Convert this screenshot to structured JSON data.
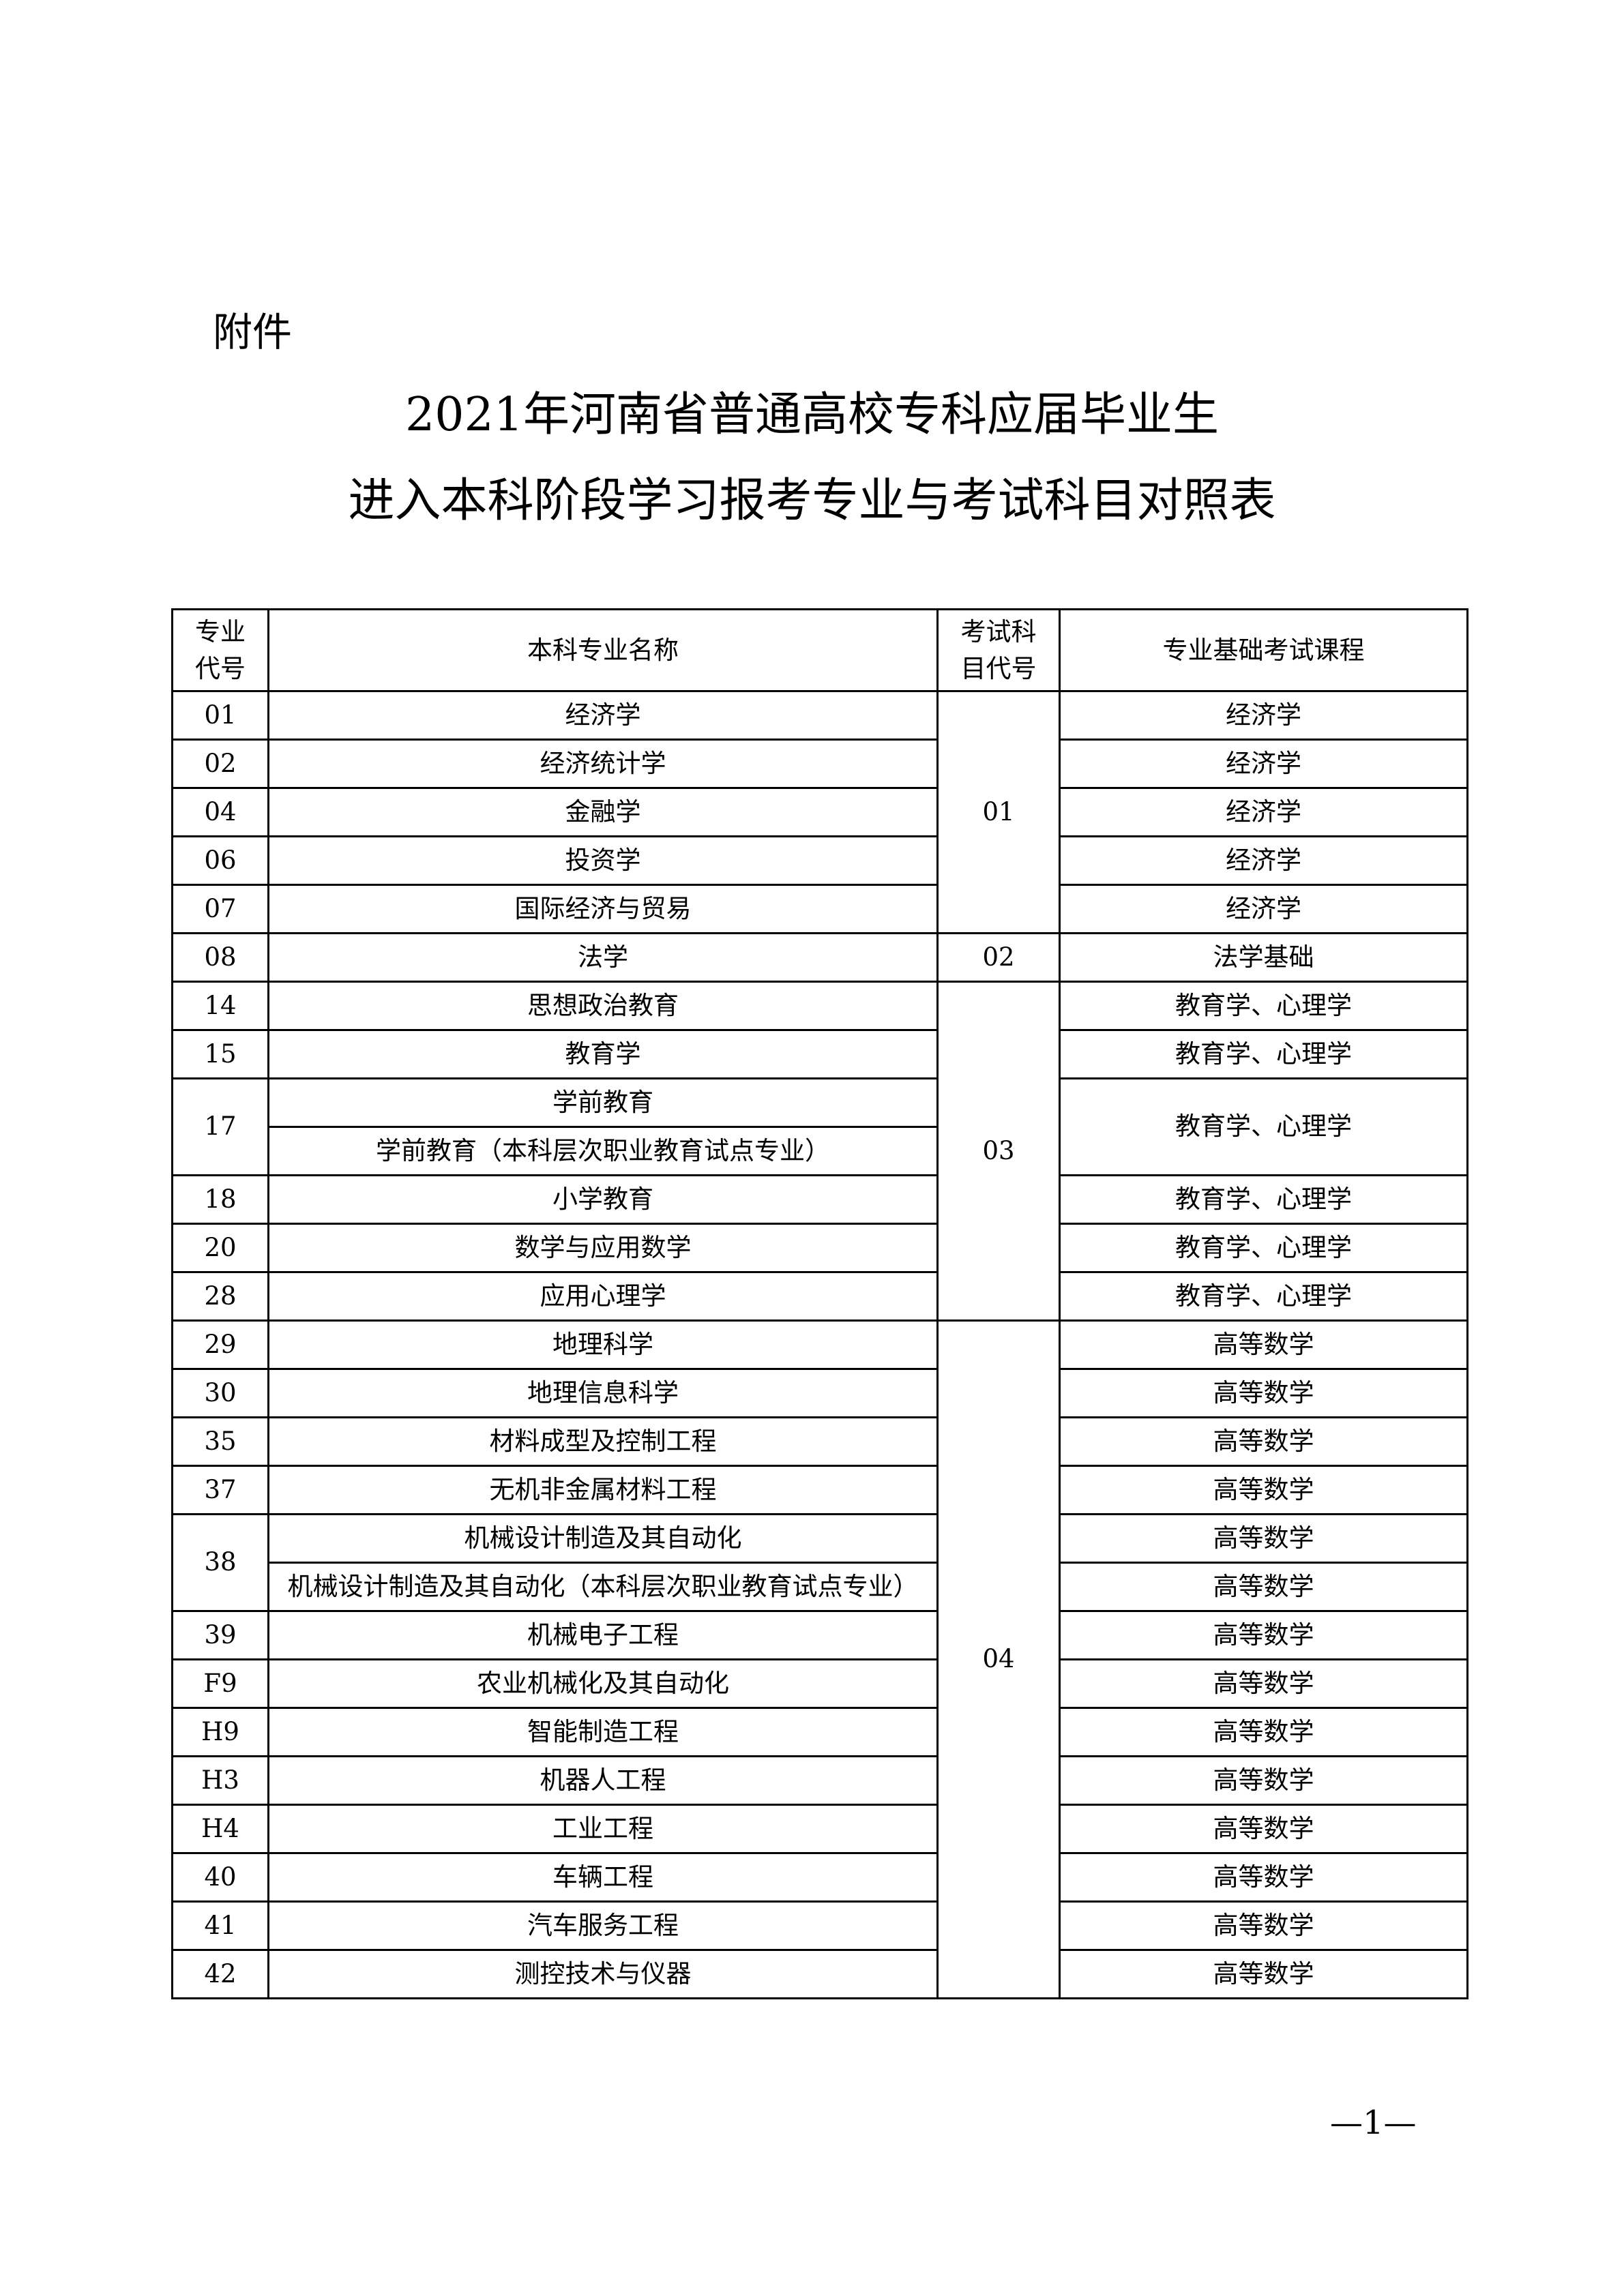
{
  "attachment_label": "附件",
  "title_line1": "2021年河南省普通高校专科应届毕业生",
  "title_line2": "进入本科阶段学习报考专业与考试科目对照表",
  "headers": {
    "major_code": "专业\n代号",
    "major_name": "本科专业名称",
    "exam_code": "考试科\n目代号",
    "course": "专业基础考试课程"
  },
  "groups": [
    {
      "exam_code": "01",
      "entries": [
        {
          "code": "01",
          "majors": [
            "经济学"
          ],
          "courses": [
            "经济学"
          ]
        },
        {
          "code": "02",
          "majors": [
            "经济统计学"
          ],
          "courses": [
            "经济学"
          ]
        },
        {
          "code": "04",
          "majors": [
            "金融学"
          ],
          "courses": [
            "经济学"
          ]
        },
        {
          "code": "06",
          "majors": [
            "投资学"
          ],
          "courses": [
            "经济学"
          ]
        },
        {
          "code": "07",
          "majors": [
            "国际经济与贸易"
          ],
          "courses": [
            "经济学"
          ]
        }
      ]
    },
    {
      "exam_code": "02",
      "entries": [
        {
          "code": "08",
          "majors": [
            "法学"
          ],
          "courses": [
            "法学基础"
          ]
        }
      ]
    },
    {
      "exam_code": "03",
      "entries": [
        {
          "code": "14",
          "majors": [
            "思想政治教育"
          ],
          "courses": [
            "教育学、心理学"
          ]
        },
        {
          "code": "15",
          "majors": [
            "教育学"
          ],
          "courses": [
            "教育学、心理学"
          ]
        },
        {
          "code": "17",
          "majors": [
            "学前教育",
            "学前教育（本科层次职业教育试点专业）"
          ],
          "courses": [
            "教育学、心理学"
          ]
        },
        {
          "code": "18",
          "majors": [
            "小学教育"
          ],
          "courses": [
            "教育学、心理学"
          ]
        },
        {
          "code": "20",
          "majors": [
            "数学与应用数学"
          ],
          "courses": [
            "教育学、心理学"
          ]
        },
        {
          "code": "28",
          "majors": [
            "应用心理学"
          ],
          "courses": [
            "教育学、心理学"
          ]
        }
      ]
    },
    {
      "exam_code": "04",
      "entries": [
        {
          "code": "29",
          "majors": [
            "地理科学"
          ],
          "courses": [
            "高等数学"
          ]
        },
        {
          "code": "30",
          "majors": [
            "地理信息科学"
          ],
          "courses": [
            "高等数学"
          ]
        },
        {
          "code": "35",
          "majors": [
            "材料成型及控制工程"
          ],
          "courses": [
            "高等数学"
          ]
        },
        {
          "code": "37",
          "majors": [
            "无机非金属材料工程"
          ],
          "courses": [
            "高等数学"
          ]
        },
        {
          "code": "38",
          "majors": [
            "机械设计制造及其自动化",
            "机械设计制造及其自动化（本科层次职业教育试点专业）"
          ],
          "courses": [
            "高等数学",
            "高等数学"
          ]
        },
        {
          "code": "39",
          "majors": [
            "机械电子工程"
          ],
          "courses": [
            "高等数学"
          ]
        },
        {
          "code": "F9",
          "majors": [
            "农业机械化及其自动化"
          ],
          "courses": [
            "高等数学"
          ]
        },
        {
          "code": "H9",
          "majors": [
            "智能制造工程"
          ],
          "courses": [
            "高等数学"
          ]
        },
        {
          "code": "H3",
          "majors": [
            "机器人工程"
          ],
          "courses": [
            "高等数学"
          ]
        },
        {
          "code": "H4",
          "majors": [
            "工业工程"
          ],
          "courses": [
            "高等数学"
          ]
        },
        {
          "code": "40",
          "majors": [
            "车辆工程"
          ],
          "courses": [
            "高等数学"
          ]
        },
        {
          "code": "41",
          "majors": [
            "汽车服务工程"
          ],
          "courses": [
            "高等数学"
          ]
        },
        {
          "code": "42",
          "majors": [
            "测控技术与仪器"
          ],
          "courses": [
            "高等数学"
          ]
        }
      ]
    }
  ],
  "page_number": "—1—"
}
